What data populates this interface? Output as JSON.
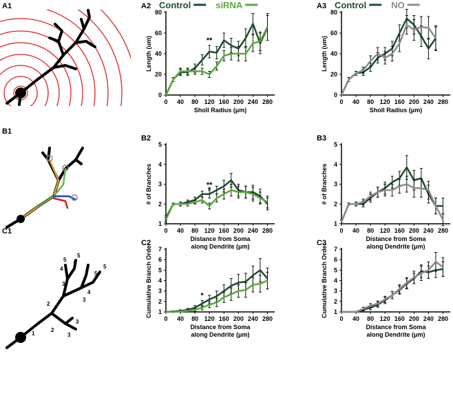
{
  "diagrams": [
    {
      "label": "A1"
    },
    {
      "label": "B1"
    },
    {
      "label": "C1",
      "branch_orders": [
        "1",
        "2",
        "2",
        "3",
        "3",
        "3",
        "3",
        "4",
        "4",
        "4",
        "5",
        "5",
        "5",
        "5"
      ]
    }
  ],
  "chart_data": [
    {
      "type": "line",
      "label": "A2",
      "ylabel": "Length (um)",
      "xlabel": [
        "Sholl Radius (μm)"
      ],
      "x": [
        0,
        20,
        40,
        60,
        80,
        100,
        120,
        140,
        160,
        180,
        200,
        220,
        240,
        260,
        280
      ],
      "xlim": [
        0,
        300
      ],
      "xticks": [
        0,
        40,
        80,
        120,
        160,
        200,
        240,
        280
      ],
      "ylim": [
        0,
        80
      ],
      "yticks": [
        0,
        20,
        40,
        60,
        80
      ],
      "series": [
        {
          "name": "Control",
          "color": "#1e4d2b",
          "values": [
            0,
            15,
            22,
            22,
            26,
            34,
            42,
            41,
            53,
            48,
            45,
            55,
            69,
            50,
            65
          ],
          "errors": [
            0,
            2,
            3,
            3,
            4,
            5,
            6,
            6,
            7,
            7,
            7,
            9,
            10,
            10,
            12
          ]
        },
        {
          "name": "siRNA",
          "color": "#5aaa3c",
          "values": [
            0,
            15,
            23,
            23,
            23,
            23,
            20,
            28,
            38,
            40,
            40,
            40,
            50,
            52,
            66
          ],
          "errors": [
            0,
            2,
            3,
            3,
            3,
            3,
            3,
            4,
            5,
            6,
            7,
            7,
            8,
            9,
            13
          ]
        }
      ],
      "annotations": [
        {
          "text": "**",
          "x": 120
        }
      ]
    },
    {
      "type": "line",
      "label": "A3",
      "ylabel": "Length (um)",
      "xlabel": [
        "Sholl Radius (μm)"
      ],
      "x": [
        0,
        20,
        40,
        60,
        80,
        100,
        120,
        140,
        160,
        180,
        200,
        220,
        240,
        260,
        280
      ],
      "xlim": [
        0,
        300
      ],
      "xticks": [
        0,
        40,
        80,
        120,
        160,
        200,
        240,
        280
      ],
      "ylim": [
        0,
        80
      ],
      "yticks": [
        0,
        20,
        40,
        60,
        80
      ],
      "series": [
        {
          "name": "Control",
          "color": "#1e4d2b",
          "values": [
            0,
            15,
            21,
            22,
            27,
            36,
            40,
            45,
            60,
            74,
            68,
            57,
            45,
            55,
            null
          ],
          "errors": [
            0,
            2,
            2,
            3,
            4,
            5,
            6,
            7,
            8,
            9,
            9,
            10,
            10,
            11,
            null
          ]
        },
        {
          "name": "NO",
          "color": "#8c8c8c",
          "values": [
            0,
            15,
            21,
            24,
            33,
            40,
            36,
            40,
            50,
            68,
            63,
            66,
            65,
            55,
            null
          ],
          "errors": [
            0,
            2,
            2,
            3,
            5,
            6,
            6,
            7,
            8,
            9,
            10,
            10,
            11,
            12,
            null
          ]
        }
      ],
      "annotations": []
    },
    {
      "type": "line",
      "label": "B2",
      "ylabel": "# of Branches",
      "xlabel": [
        "Distance from Soma",
        "along Dendrite (μm)"
      ],
      "x": [
        0,
        20,
        40,
        60,
        80,
        100,
        120,
        140,
        160,
        180,
        200,
        220,
        240,
        260,
        280
      ],
      "xlim": [
        0,
        300
      ],
      "xticks": [
        0,
        40,
        80,
        120,
        160,
        200,
        240,
        280
      ],
      "ylim": [
        1,
        5
      ],
      "yticks": [
        1,
        2,
        3,
        4,
        5
      ],
      "series": [
        {
          "color": "#1e4d2b",
          "values": [
            1.3,
            2.0,
            2.0,
            2.1,
            2.2,
            2.5,
            2.5,
            2.7,
            2.9,
            3.2,
            2.7,
            2.6,
            2.6,
            2.4,
            2.0
          ],
          "errors": [
            0.1,
            0.05,
            0.1,
            0.1,
            0.15,
            0.15,
            0.2,
            0.2,
            0.3,
            0.35,
            0.3,
            0.3,
            0.35,
            0.35,
            0.3
          ]
        },
        {
          "color": "#5aaa3c",
          "values": [
            1.2,
            2.0,
            2.0,
            2.0,
            2.1,
            2.2,
            1.9,
            2.3,
            2.5,
            2.7,
            2.6,
            2.6,
            2.5,
            2.3,
            2.1
          ],
          "errors": [
            0.1,
            0.05,
            0.1,
            0.1,
            0.1,
            0.15,
            0.15,
            0.2,
            0.25,
            0.3,
            0.3,
            0.3,
            0.35,
            0.3,
            0.3
          ]
        }
      ],
      "annotations": [
        {
          "text": "**",
          "x": 120
        },
        {
          "text": "*",
          "x": 120
        }
      ]
    },
    {
      "type": "line",
      "label": "B3",
      "ylabel": "# of Branches",
      "xlabel": [
        "Distance from Soma",
        "along Dendrite (μm)"
      ],
      "x": [
        0,
        20,
        40,
        60,
        80,
        100,
        120,
        140,
        160,
        180,
        200,
        220,
        240,
        260,
        280
      ],
      "xlim": [
        0,
        300
      ],
      "xticks": [
        0,
        40,
        80,
        120,
        160,
        200,
        240,
        280
      ],
      "ylim": [
        1,
        5
      ],
      "yticks": [
        1,
        2,
        3,
        4,
        5
      ],
      "series": [
        {
          "color": "#1e4d2b",
          "values": [
            1.1,
            2.0,
            2.0,
            2.0,
            2.3,
            2.6,
            2.8,
            3.1,
            3.3,
            3.85,
            3.2,
            3.3,
            2.5,
            1.9,
            1.9
          ],
          "errors": [
            0.1,
            0.05,
            0.1,
            0.15,
            0.2,
            0.25,
            0.3,
            0.3,
            0.35,
            0.6,
            0.5,
            0.5,
            0.45,
            0.4,
            0.4
          ]
        },
        {
          "color": "#8c8c8c",
          "values": [
            1.1,
            2.0,
            2.0,
            2.1,
            2.4,
            2.6,
            2.7,
            2.7,
            2.9,
            3.0,
            2.8,
            2.8,
            2.7,
            1.9,
            1.2
          ],
          "errors": [
            0.1,
            0.05,
            0.1,
            0.15,
            0.2,
            0.25,
            0.3,
            0.3,
            0.35,
            0.4,
            0.45,
            0.45,
            0.45,
            0.4,
            0.3
          ]
        }
      ],
      "annotations": []
    },
    {
      "type": "line",
      "label": "C2",
      "ylabel": "Cumulative Branch Order",
      "xlabel": [
        "Distance from Soma",
        "along Dendrite (μm)"
      ],
      "x": [
        0,
        20,
        40,
        60,
        80,
        100,
        120,
        140,
        160,
        180,
        200,
        220,
        240,
        260,
        280
      ],
      "xlim": [
        0,
        300
      ],
      "xticks": [
        0,
        40,
        80,
        120,
        160,
        200,
        240,
        280
      ],
      "ylim": [
        1,
        7
      ],
      "yticks": [
        1,
        2,
        3,
        4,
        5,
        6,
        7
      ],
      "series": [
        {
          "color": "#1e4d2b",
          "values": [
            1.0,
            1.05,
            1.1,
            1.2,
            1.4,
            1.8,
            2.2,
            2.5,
            3.0,
            3.5,
            3.8,
            3.9,
            4.5,
            5.0,
            4.2
          ],
          "errors": [
            0,
            0.05,
            0.1,
            0.15,
            0.2,
            0.3,
            0.4,
            0.5,
            0.6,
            0.7,
            0.8,
            0.8,
            0.9,
            1.1,
            1.0
          ]
        },
        {
          "color": "#5aaa3c",
          "values": [
            1.0,
            1.0,
            1.05,
            1.1,
            1.2,
            1.4,
            1.7,
            1.9,
            2.4,
            2.7,
            3.0,
            3.1,
            3.6,
            3.7,
            4.0
          ],
          "errors": [
            0,
            0.05,
            0.05,
            0.1,
            0.15,
            0.2,
            0.3,
            0.4,
            0.5,
            0.6,
            0.6,
            0.7,
            0.7,
            0.8,
            0.8
          ]
        }
      ],
      "annotations": [
        {
          "text": "*",
          "x": 100
        }
      ]
    },
    {
      "type": "line",
      "label": "C3",
      "ylabel": "Cumulative Branch Order",
      "xlabel": [
        "Distance from Soma",
        "along Dendrite (μm)"
      ],
      "x": [
        0,
        20,
        40,
        60,
        80,
        100,
        120,
        140,
        160,
        180,
        200,
        220,
        240,
        260,
        280
      ],
      "xlim": [
        0,
        300
      ],
      "xticks": [
        0,
        40,
        80,
        120,
        160,
        200,
        240,
        280
      ],
      "ylim": [
        1,
        7
      ],
      "yticks": [
        1,
        2,
        3,
        4,
        5,
        6,
        7
      ],
      "series": [
        {
          "color": "#1e4d2b",
          "values": [
            1.0,
            1.0,
            1.0,
            1.2,
            1.4,
            1.7,
            2.1,
            2.6,
            3.1,
            3.7,
            4.2,
            4.9,
            4.8,
            5.0,
            5.1
          ],
          "errors": [
            0,
            0,
            0.05,
            0.1,
            0.2,
            0.25,
            0.3,
            0.35,
            0.4,
            0.5,
            0.5,
            0.6,
            0.6,
            0.7,
            0.7
          ]
        },
        {
          "color": "#8c8c8c",
          "values": [
            1.0,
            1.0,
            1.0,
            1.3,
            1.6,
            1.8,
            2.2,
            2.6,
            3.2,
            3.8,
            4.3,
            4.7,
            5.0,
            5.8,
            5.3
          ],
          "errors": [
            0,
            0,
            0.05,
            0.15,
            0.2,
            0.25,
            0.3,
            0.35,
            0.4,
            0.5,
            0.6,
            0.7,
            0.8,
            0.9,
            0.9
          ]
        }
      ],
      "annotations": []
    }
  ]
}
